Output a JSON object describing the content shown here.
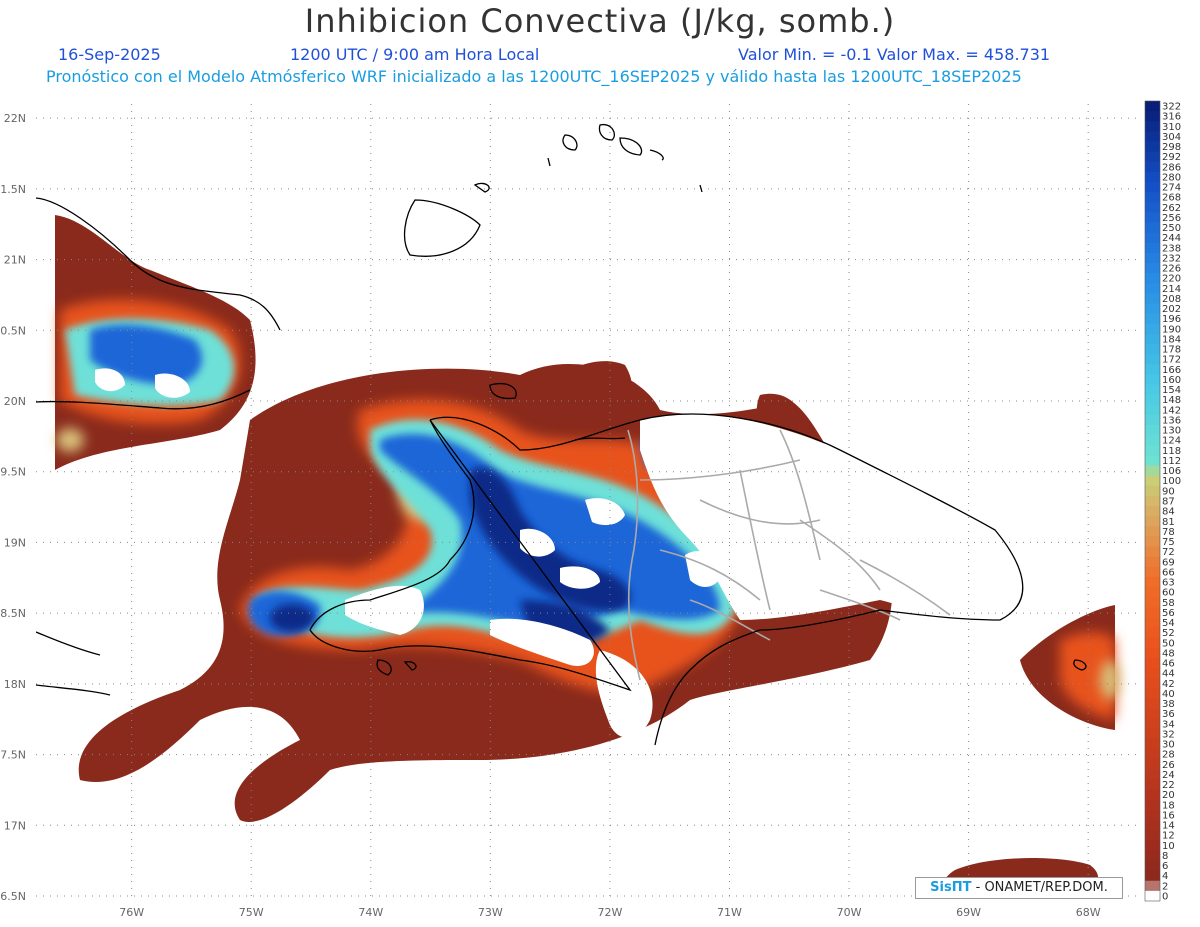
{
  "header": {
    "title": "Inhibicion Convectiva (J/kg, somb.)",
    "date": "16-Sep-2025",
    "time": "1200 UTC / 9:00 am Hora Local",
    "minmax": "Valor Min. = -0.1  Valor Max. = 458.731",
    "model": "Pronóstico con el Modelo Atmósferico WRF inicializado a las 1200UTC_16SEP2025 y válido hasta las  1200UTC_18SEP2025"
  },
  "map": {
    "lat_labels": [
      "22N",
      "21.5N",
      "21N",
      "20.5N",
      "20N",
      "19.5N",
      "19N",
      "18.5N",
      "18N",
      "17.5N",
      "17N",
      "16.5N"
    ],
    "lat_values": [
      22,
      21.5,
      21,
      20.5,
      20,
      19.5,
      19,
      18.5,
      18,
      17.5,
      17,
      16.5
    ],
    "lon_labels": [
      "76W",
      "75W",
      "74W",
      "73W",
      "72W",
      "71W",
      "70W",
      "69W",
      "68W"
    ],
    "lon_values": [
      -76,
      -75,
      -74,
      -73,
      -72,
      -71,
      -70,
      -69,
      -68
    ],
    "extent": {
      "lon_min": -76.8,
      "lon_max": -67.6,
      "lat_min": 16.5,
      "lat_max": 22.1
    },
    "colors": {
      "deep": "#8a2a1c",
      "orange": "#e8531c",
      "tan": "#d8c07a",
      "cyan": "#6ee0d8",
      "blue": "#1a66d8",
      "navy": "#0a2a88",
      "coast": "#000000",
      "border": "#aaaaaa"
    }
  },
  "colorbar": {
    "labels": [
      "322",
      "316",
      "310",
      "304",
      "298",
      "292",
      "286",
      "280",
      "274",
      "268",
      "262",
      "256",
      "250",
      "244",
      "238",
      "232",
      "226",
      "220",
      "214",
      "208",
      "202",
      "196",
      "190",
      "184",
      "178",
      "172",
      "166",
      "160",
      "154",
      "148",
      "142",
      "136",
      "130",
      "124",
      "118",
      "112",
      "106",
      "100",
      "90",
      "87",
      "84",
      "81",
      "78",
      "75",
      "72",
      "69",
      "66",
      "63",
      "60",
      "58",
      "56",
      "54",
      "52",
      "50",
      "48",
      "46",
      "44",
      "42",
      "40",
      "38",
      "36",
      "34",
      "32",
      "30",
      "28",
      "26",
      "24",
      "22",
      "20",
      "18",
      "16",
      "14",
      "12",
      "10",
      "8",
      "6",
      "4",
      "2",
      "0"
    ]
  },
  "credit": {
    "sis": "SisПΤ",
    "org": " - ONAMET/REP.DOM."
  }
}
